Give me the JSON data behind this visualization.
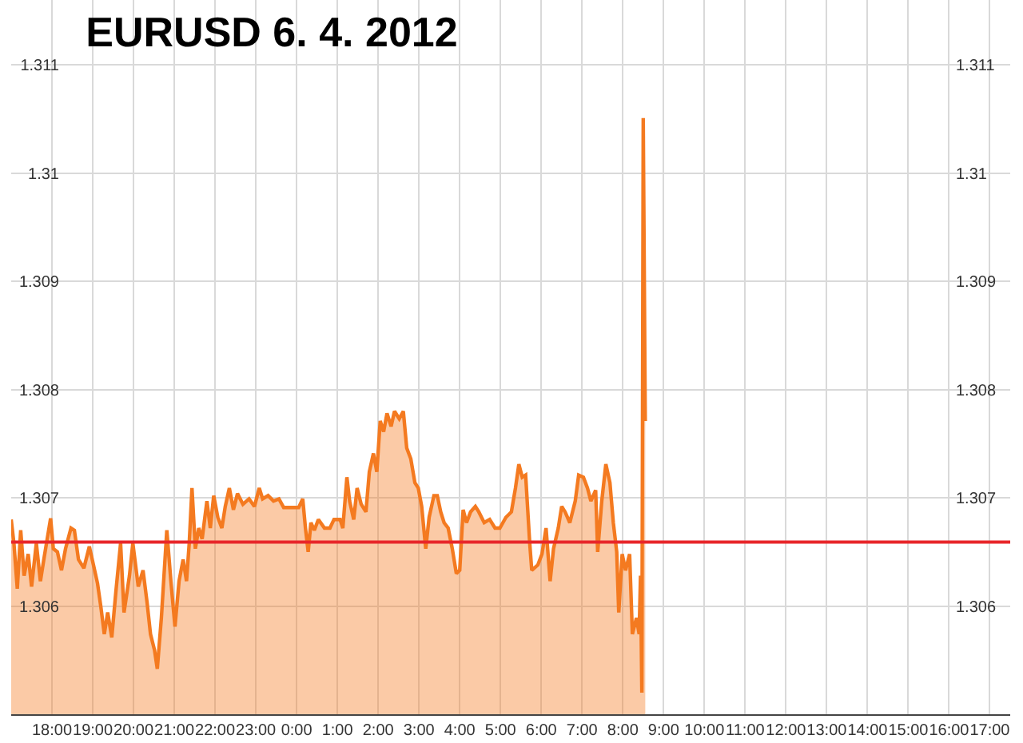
{
  "chart_data": {
    "type": "area",
    "title": "EURUSD 6. 4. 2012",
    "x": [
      "2012-04-05T17:00",
      "2012-04-05T17:04",
      "2012-04-05T17:09",
      "2012-04-05T17:14",
      "2012-04-05T17:19",
      "2012-04-05T17:25",
      "2012-04-05T17:30",
      "2012-04-05T17:37",
      "2012-04-05T17:43",
      "2012-04-05T17:48",
      "2012-04-05T17:58",
      "2012-04-05T18:02",
      "2012-04-05T18:08",
      "2012-04-05T18:14",
      "2012-04-05T18:20",
      "2012-04-05T18:28",
      "2012-04-05T18:33",
      "2012-04-05T18:39",
      "2012-04-05T18:47",
      "2012-04-05T18:55",
      "2012-04-05T19:01",
      "2012-04-05T19:07",
      "2012-04-05T19:12",
      "2012-04-05T19:17",
      "2012-04-05T19:22",
      "2012-04-05T19:28",
      "2012-04-05T19:34",
      "2012-04-05T19:41",
      "2012-04-05T19:46",
      "2012-04-05T19:54",
      "2012-04-05T19:59",
      "2012-04-05T20:07",
      "2012-04-05T20:14",
      "2012-04-05T20:20",
      "2012-04-05T20:25",
      "2012-04-05T20:31",
      "2012-04-05T20:35",
      "2012-04-05T20:41",
      "2012-04-05T20:49",
      "2012-04-05T20:55",
      "2012-04-05T21:01",
      "2012-04-05T21:07",
      "2012-04-05T21:13",
      "2012-04-05T21:18",
      "2012-04-05T21:22",
      "2012-04-05T21:26",
      "2012-04-05T21:31",
      "2012-04-05T21:36",
      "2012-04-05T21:41",
      "2012-04-05T21:48",
      "2012-04-05T21:53",
      "2012-04-05T21:58",
      "2012-04-05T22:04",
      "2012-04-05T22:10",
      "2012-04-05T22:15",
      "2012-04-05T22:21",
      "2012-04-05T22:27",
      "2012-04-05T22:33",
      "2012-04-05T22:41",
      "2012-04-05T22:50",
      "2012-04-05T22:58",
      "2012-04-05T23:05",
      "2012-04-05T23:10",
      "2012-04-05T23:18",
      "2012-04-05T23:26",
      "2012-04-05T23:34",
      "2012-04-05T23:41",
      "2012-04-06T00:03",
      "2012-04-06T00:09",
      "2012-04-06T00:13",
      "2012-04-06T00:17",
      "2012-04-06T00:21",
      "2012-04-06T00:26",
      "2012-04-06T00:32",
      "2012-04-06T00:41",
      "2012-04-06T00:49",
      "2012-04-06T00:55",
      "2012-04-06T01:04",
      "2012-04-06T01:08",
      "2012-04-06T01:14",
      "2012-04-06T01:18",
      "2012-04-06T01:24",
      "2012-04-06T01:29",
      "2012-04-06T01:35",
      "2012-04-06T01:42",
      "2012-04-06T01:47",
      "2012-04-06T01:53",
      "2012-04-06T01:58",
      "2012-04-06T02:03",
      "2012-04-06T02:08",
      "2012-04-06T02:13",
      "2012-04-06T02:19",
      "2012-04-06T02:24",
      "2012-04-06T02:31",
      "2012-04-06T02:37",
      "2012-04-06T02:42",
      "2012-04-06T02:48",
      "2012-04-06T02:54",
      "2012-04-06T02:59",
      "2012-04-06T03:04",
      "2012-04-06T03:10",
      "2012-04-06T03:15",
      "2012-04-06T03:22",
      "2012-04-06T03:27",
      "2012-04-06T03:32",
      "2012-04-06T03:37",
      "2012-04-06T03:43",
      "2012-04-06T03:49",
      "2012-04-06T03:55",
      "2012-04-06T04:00",
      "2012-04-06T04:05",
      "2012-04-06T04:10",
      "2012-04-06T04:16",
      "2012-04-06T04:23",
      "2012-04-06T04:28",
      "2012-04-06T04:36",
      "2012-04-06T04:44",
      "2012-04-06T04:52",
      "2012-04-06T04:59",
      "2012-04-06T05:08",
      "2012-04-06T05:16",
      "2012-04-06T05:22",
      "2012-04-06T05:27",
      "2012-04-06T05:32",
      "2012-04-06T05:37",
      "2012-04-06T05:43",
      "2012-04-06T05:46",
      "2012-04-06T05:55",
      "2012-04-06T06:01",
      "2012-04-06T06:07",
      "2012-04-06T06:13",
      "2012-04-06T06:18",
      "2012-04-06T06:25",
      "2012-04-06T06:30",
      "2012-04-06T06:35",
      "2012-04-06T06:42",
      "2012-04-06T06:50",
      "2012-04-06T06:55",
      "2012-04-06T07:02",
      "2012-04-06T07:08",
      "2012-04-06T07:13",
      "2012-04-06T07:20",
      "2012-04-06T07:23",
      "2012-04-06T07:29",
      "2012-04-06T07:35",
      "2012-04-06T07:41",
      "2012-04-06T07:46",
      "2012-04-06T07:51",
      "2012-04-06T07:54",
      "2012-04-06T07:59",
      "2012-04-06T08:04",
      "2012-04-06T08:10",
      "2012-04-06T08:14",
      "2012-04-06T08:20",
      "2012-04-06T08:24",
      "2012-04-06T08:26",
      "2012-04-06T08:28",
      "2012-04-06T08:30",
      "2012-04-06T08:33"
    ],
    "series": [
      {
        "color": "#f47a20",
        "values": [
          1.3068,
          1.30658,
          1.30616,
          1.3067,
          1.30628,
          1.30648,
          1.30618,
          1.30658,
          1.30623,
          1.30643,
          1.30681,
          1.30653,
          1.3065,
          1.30633,
          1.30653,
          1.30672,
          1.3067,
          1.30643,
          1.30635,
          1.30655,
          1.30638,
          1.30621,
          1.30599,
          1.30574,
          1.30594,
          1.30571,
          1.30613,
          1.30658,
          1.30594,
          1.30628,
          1.30658,
          1.30618,
          1.30633,
          1.30603,
          1.30574,
          1.30559,
          1.30542,
          1.30589,
          1.3067,
          1.30623,
          1.30581,
          1.30623,
          1.30643,
          1.30623,
          1.30658,
          1.30709,
          1.30653,
          1.30672,
          1.30662,
          1.30697,
          1.30672,
          1.30702,
          1.30682,
          1.30672,
          1.30692,
          1.30709,
          1.30689,
          1.30704,
          1.30694,
          1.30699,
          1.30692,
          1.30709,
          1.30699,
          1.30702,
          1.30697,
          1.30699,
          1.30691,
          1.30691,
          1.30699,
          1.30672,
          1.3065,
          1.30677,
          1.3067,
          1.3068,
          1.30672,
          1.30672,
          1.3068,
          1.3068,
          1.30672,
          1.30719,
          1.30697,
          1.3068,
          1.30709,
          1.30694,
          1.30687,
          1.30724,
          1.30741,
          1.30724,
          1.30771,
          1.30761,
          1.30778,
          1.30766,
          1.3078,
          1.30773,
          1.3078,
          1.30746,
          1.30736,
          1.30714,
          1.30709,
          1.30692,
          1.30653,
          1.30682,
          1.30702,
          1.30702,
          1.30687,
          1.30677,
          1.30672,
          1.30653,
          1.3063,
          1.30633,
          1.30689,
          1.30677,
          1.30687,
          1.30692,
          1.30687,
          1.30677,
          1.3068,
          1.30672,
          1.30672,
          1.30682,
          1.30687,
          1.30709,
          1.30731,
          1.30719,
          1.30721,
          1.30658,
          1.30633,
          1.30638,
          1.30648,
          1.30672,
          1.30623,
          1.30653,
          1.30672,
          1.30692,
          1.30687,
          1.30677,
          1.30697,
          1.30721,
          1.30719,
          1.30709,
          1.30697,
          1.30707,
          1.3065,
          1.30697,
          1.30731,
          1.30714,
          1.30677,
          1.3065,
          1.30594,
          1.30648,
          1.30633,
          1.30648,
          1.30574,
          1.30589,
          1.30574,
          1.30628,
          1.3052,
          1.31051,
          1.30771
        ]
      }
    ],
    "xlim": [
      "2012-04-05T17:00",
      "2012-04-06T17:30"
    ],
    "xticks": [
      {
        "value": "2012-04-05T18:00",
        "label": "18:00"
      },
      {
        "value": "2012-04-05T19:00",
        "label": "19:00"
      },
      {
        "value": "2012-04-05T20:00",
        "label": "20:00"
      },
      {
        "value": "2012-04-05T21:00",
        "label": "21:00"
      },
      {
        "value": "2012-04-05T22:00",
        "label": "22:00"
      },
      {
        "value": "2012-04-05T23:00",
        "label": "23:00"
      },
      {
        "value": "2012-04-06T00:00",
        "label": "0:00"
      },
      {
        "value": "2012-04-06T01:00",
        "label": "1:00"
      },
      {
        "value": "2012-04-06T02:00",
        "label": "2:00"
      },
      {
        "value": "2012-04-06T03:00",
        "label": "3:00"
      },
      {
        "value": "2012-04-06T04:00",
        "label": "4:00"
      },
      {
        "value": "2012-04-06T05:00",
        "label": "5:00"
      },
      {
        "value": "2012-04-06T06:00",
        "label": "6:00"
      },
      {
        "value": "2012-04-06T07:00",
        "label": "7:00"
      },
      {
        "value": "2012-04-06T08:00",
        "label": "8:00"
      },
      {
        "value": "2012-04-06T09:00",
        "label": "9:00"
      },
      {
        "value": "2012-04-06T10:00",
        "label": "10:00"
      },
      {
        "value": "2012-04-06T11:00",
        "label": "11:00"
      },
      {
        "value": "2012-04-06T12:00",
        "label": "12:00"
      },
      {
        "value": "2012-04-06T13:00",
        "label": "13:00"
      },
      {
        "value": "2012-04-06T14:00",
        "label": "14:00"
      },
      {
        "value": "2012-04-06T15:00",
        "label": "15:00"
      },
      {
        "value": "2012-04-06T16:00",
        "label": "16:00"
      },
      {
        "value": "2012-04-06T17:00",
        "label": "17:00"
      }
    ],
    "ylim": [
      1.305,
      1.3116
    ],
    "yticks": [
      1.306,
      1.307,
      1.308,
      1.309,
      1.31,
      1.311
    ],
    "y2lim": [
      1.305,
      1.3116
    ],
    "y2ticks": [
      1.306,
      1.307,
      1.308,
      1.309,
      1.31,
      1.311
    ],
    "ref_lines": [
      {
        "axis": "y",
        "value": 1.30659,
        "color": "#e8262a"
      }
    ],
    "grid": true
  }
}
